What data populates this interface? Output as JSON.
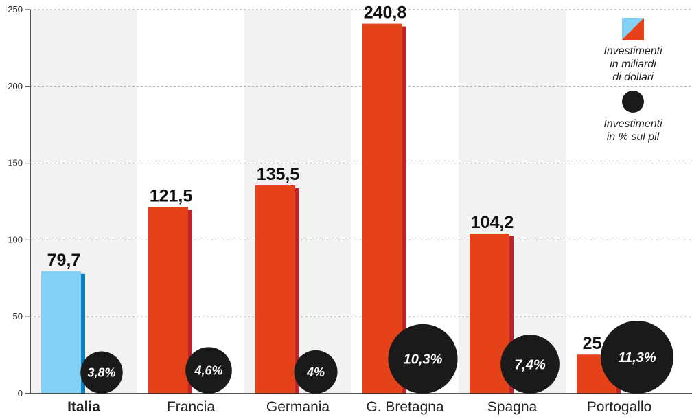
{
  "chart_data": {
    "type": "bar",
    "categories": [
      "Italia",
      "Francia",
      "Germania",
      "G. Bretagna",
      "Spagna",
      "Portogallo"
    ],
    "highlight_category": "Italia",
    "series": [
      {
        "values": [
          79.7,
          121.5,
          135.5,
          240.8,
          104.2,
          25.4
        ],
        "value_labels": [
          "79,7",
          "121,5",
          "135,5",
          "240,8",
          "104,2",
          "25,4"
        ]
      },
      {
        "values": [
          3.8,
          4.6,
          4,
          10.3,
          7.4,
          11.3
        ],
        "value_labels": [
          "3,8%",
          "4,6%",
          "4%",
          "10,3%",
          "7,4%",
          "11,3%"
        ],
        "shown_as": "circle"
      }
    ],
    "ylim": [
      0,
      250
    ],
    "yticks": [
      0,
      50,
      100,
      150,
      200,
      250
    ],
    "grid": true,
    "legend_position": "top-right",
    "legend": [
      {
        "marker": "square-split",
        "lines": [
          "Investimenti",
          "in miliardi",
          "di dollari"
        ]
      },
      {
        "marker": "circle",
        "lines": [
          "Investimenti",
          "in % sul pil"
        ]
      }
    ],
    "colors": {
      "highlight_bar": "#82d0f5",
      "highlight_shadow": "#0b7fc2",
      "bar": "#e64219",
      "bar_shadow": "#b8262b",
      "circle": "#1a1a1a",
      "band": "#f2f2f2",
      "grid": "#999999"
    },
    "title": "",
    "xlabel": "",
    "ylabel": ""
  }
}
